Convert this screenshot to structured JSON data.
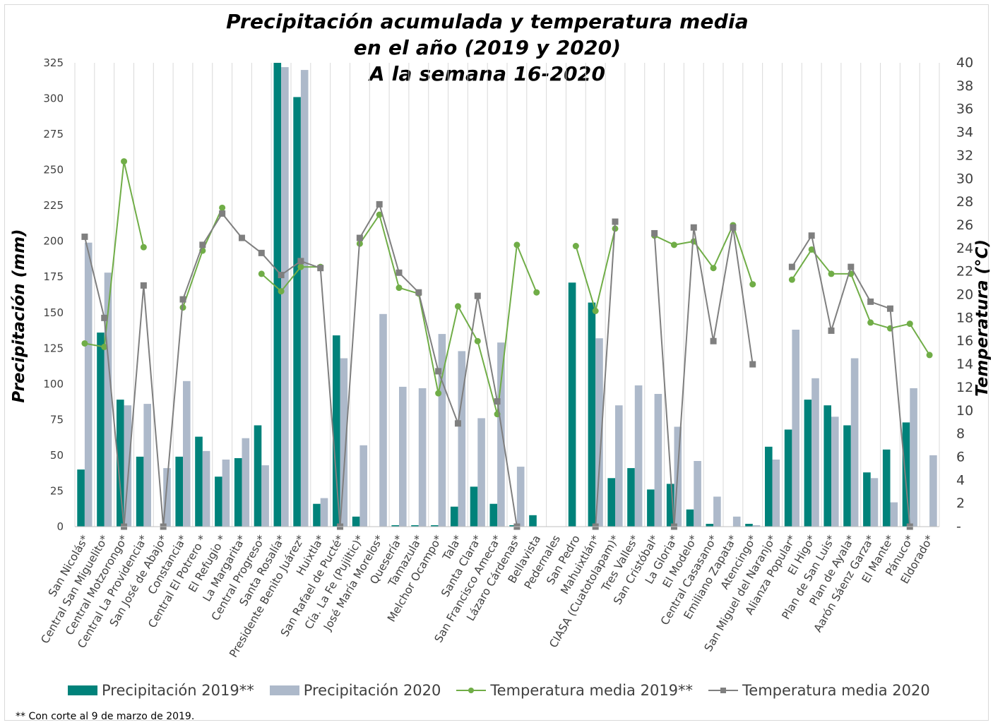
{
  "title": {
    "line1": "Precipitación acumulada y temperatura media",
    "line2": "en el año (2019 y 2020)",
    "line3": "A la semana 16-2020"
  },
  "footnote": "** Con corte al 9 de marzo de 2019.",
  "colors": {
    "precip_2019": "#00827a",
    "precip_2020": "#adb9ca",
    "temp_2019": "#70ad47",
    "temp_2020": "#7f7f7f",
    "grid": "#d9d9d9",
    "text": "#404040"
  },
  "chart_data": {
    "type": "bar",
    "combo": "bar+line",
    "ylabel": "Precipitación (mm)",
    "y2label": "Temperatura (°C)",
    "ylim": [
      0,
      325
    ],
    "y2lim": [
      0,
      40
    ],
    "yticks": [
      0,
      25,
      50,
      75,
      100,
      125,
      150,
      175,
      200,
      225,
      250,
      275,
      300,
      325
    ],
    "y2ticks": [
      "-",
      "2",
      "4",
      "6",
      "8",
      "10",
      "12",
      "14",
      "16",
      "18",
      "20",
      "22",
      "24",
      "26",
      "28",
      "30",
      "32",
      "34",
      "36",
      "38",
      "40"
    ],
    "grid": "vertical",
    "legend_position": "bottom",
    "categories": [
      "San Nicolás*",
      "Central San Miguelito*",
      "Central Motzorongo*",
      "Central La Providencia*",
      "San José de Abajo*",
      "Constancia*",
      "Central El Potrero *",
      "El Refugio *",
      "La Margarita*",
      "Central Progreso*",
      "Santa Rosalía*",
      "Presidente Benito Juárez*",
      "Huixtla*",
      "San Rafael de Pucté*",
      "Cía. La Fe (Pujiltic)*",
      "José María Morelos*",
      "Quesería*",
      "Tamazula*",
      "Melchor Ocampo*",
      "Tala*",
      "Santa Clara*",
      "San Francisco Ameca*",
      "Lázaro Cárdenas*",
      "Bellavista",
      "Pedernales",
      "San Pedro",
      "Mahuixtlán*",
      "CIASA (Cuatotolapam)*",
      "Tres Valles*",
      "San Cristóbal*",
      "La Gloria*",
      "El Modelo*",
      "Central Casasano*",
      "Emiliano Zapata*",
      "Atencingo*",
      "San Miguel del Naranjo*",
      "Alianza Popular*",
      "El Higo*",
      "Plan de San Luis*",
      "Plan de Ayala*",
      "Aarón Sáenz Garza*",
      "El Mante*",
      "Pánuco*",
      "Eldorado*"
    ],
    "series": [
      {
        "name": "Precipitación 2019**",
        "type": "bar",
        "axis": "left",
        "values": [
          40,
          136,
          89,
          49,
          0,
          49,
          63,
          35,
          48,
          71,
          325,
          301,
          16,
          134,
          7,
          0,
          1,
          1,
          1,
          14,
          28,
          16,
          1,
          8,
          0,
          171,
          157,
          34,
          41,
          26,
          30,
          12,
          2,
          0,
          2,
          56,
          68,
          89,
          85,
          71,
          38,
          54,
          73,
          0
        ]
      },
      {
        "name": "Precipitación 2020",
        "type": "bar",
        "axis": "left",
        "values": [
          199,
          178,
          85,
          86,
          41,
          102,
          53,
          47,
          62,
          43,
          322,
          320,
          20,
          118,
          57,
          149,
          98,
          97,
          135,
          123,
          76,
          129,
          42,
          0,
          0,
          0,
          132,
          85,
          99,
          93,
          70,
          46,
          21,
          7,
          1,
          47,
          138,
          104,
          77,
          118,
          34,
          17,
          97,
          50
        ]
      },
      {
        "name": "Temperatura media 2019**",
        "type": "line",
        "axis": "right",
        "values": [
          15.8,
          15.5,
          31.5,
          24.1,
          null,
          18.9,
          23.8,
          27.5,
          null,
          21.8,
          20.3,
          22.4,
          22.4,
          null,
          24.4,
          26.9,
          20.6,
          20.1,
          11.5,
          19.0,
          16.0,
          9.7,
          24.3,
          20.2,
          null,
          24.2,
          18.6,
          25.7,
          null,
          25.1,
          24.3,
          24.6,
          22.3,
          26.0,
          20.9,
          null,
          21.3,
          23.9,
          21.8,
          21.8,
          17.6,
          17.1,
          17.5,
          14.8
        ]
      },
      {
        "name": "Temperatura media 2020",
        "type": "line",
        "axis": "right",
        "values": [
          25.0,
          18.0,
          0,
          20.8,
          0,
          19.6,
          24.3,
          27.0,
          24.9,
          23.6,
          21.7,
          22.9,
          22.3,
          0,
          24.9,
          27.8,
          21.9,
          20.2,
          13.4,
          8.9,
          19.9,
          10.8,
          0,
          null,
          null,
          null,
          0,
          26.3,
          null,
          25.3,
          0,
          25.8,
          16.0,
          25.8,
          14.0,
          null,
          22.4,
          25.1,
          16.9,
          22.4,
          19.4,
          18.8,
          0,
          null
        ]
      }
    ]
  }
}
